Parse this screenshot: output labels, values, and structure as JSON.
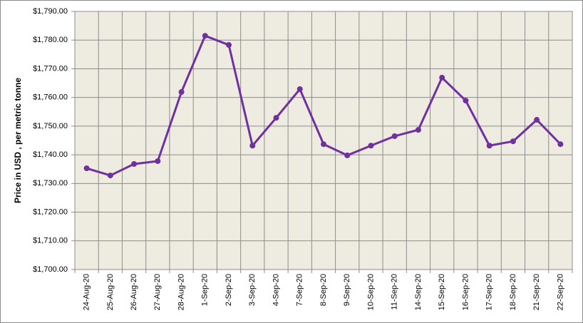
{
  "chart_data": {
    "type": "line",
    "y_label": "Price in USD , per metric tonne",
    "categories": [
      "24-Aug-20",
      "25-Aug-20",
      "26-Aug-20",
      "27-Aug-20",
      "28-Aug-20",
      "1-Sep-20",
      "2-Sep-20",
      "3-Sep-20",
      "4-Sep-20",
      "7-Sep-20",
      "8-Sep-20",
      "9-Sep-20",
      "10-Sep-20",
      "11-Sep-20",
      "14-Sep-20",
      "15-Sep-20",
      "16-Sep-20",
      "17-Sep-20",
      "18-Sep-20",
      "21-Sep-20",
      "22-Sep-20"
    ],
    "series": [
      {
        "color": "#7030a0",
        "values": [
          1735.3,
          1732.8,
          1736.8,
          1737.8,
          1761.9,
          1781.5,
          1778.3,
          1743.2,
          1752.9,
          1762.9,
          1743.7,
          1739.8,
          1743.2,
          1746.5,
          1748.7,
          1766.9,
          1758.9,
          1743.2,
          1744.7,
          1752.2,
          1743.7
        ]
      }
    ],
    "ylim": [
      1700,
      1790
    ],
    "yticks": [
      {
        "value": 1700,
        "label": "$1,700.00"
      },
      {
        "value": 1710,
        "label": "$1,710.00"
      },
      {
        "value": 1720,
        "label": "$1,720.00"
      },
      {
        "value": 1730,
        "label": "$1,730.00"
      },
      {
        "value": 1740,
        "label": "$1,740.00"
      },
      {
        "value": 1750,
        "label": "$1,750.00"
      },
      {
        "value": 1760,
        "label": "$1,760.00"
      },
      {
        "value": 1770,
        "label": "$1,770.00"
      },
      {
        "value": 1780,
        "label": "$1,780.00"
      },
      {
        "value": 1790,
        "label": "$1,790.00"
      }
    ],
    "grid": true
  }
}
